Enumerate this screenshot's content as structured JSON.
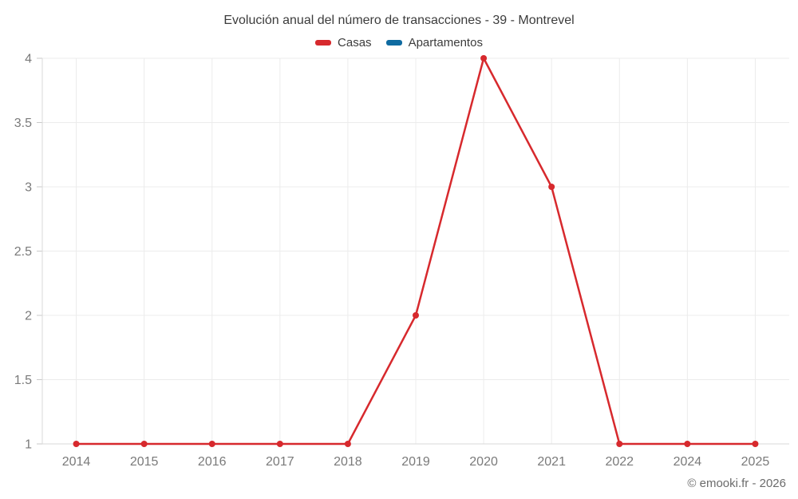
{
  "chart_data": {
    "type": "line",
    "title": "Evolución anual del número de transacciones - 39 - Montrevel",
    "categories": [
      "2014",
      "2015",
      "2016",
      "2017",
      "2018",
      "2019",
      "2020",
      "2021",
      "2022",
      "2024",
      "2025"
    ],
    "series": [
      {
        "name": "Casas",
        "color": "#d7292d",
        "values": [
          1,
          1,
          1,
          1,
          1,
          2,
          4,
          3,
          1,
          1,
          1
        ]
      },
      {
        "name": "Apartamentos",
        "color": "#0f6ba1",
        "values": []
      }
    ],
    "xlabel": "",
    "ylabel": "",
    "ylim": [
      1,
      4
    ],
    "yticks": [
      1,
      1.5,
      2,
      2.5,
      3,
      3.5,
      4
    ],
    "grid": true,
    "legend_position": "top",
    "marker": "circle"
  },
  "footer": {
    "credit": "© emooki.fr - 2026"
  },
  "colors": {
    "casas": "#d7292d",
    "apartamentos": "#0f6ba1",
    "gridline": "#ececec",
    "axis_line": "#dadada",
    "tick_mark": "#c9c9c9",
    "tick_label": "#7a7a7a",
    "title_text": "#3c3c3c",
    "credit_text": "#6b6b6b",
    "background": "#ffffff"
  }
}
